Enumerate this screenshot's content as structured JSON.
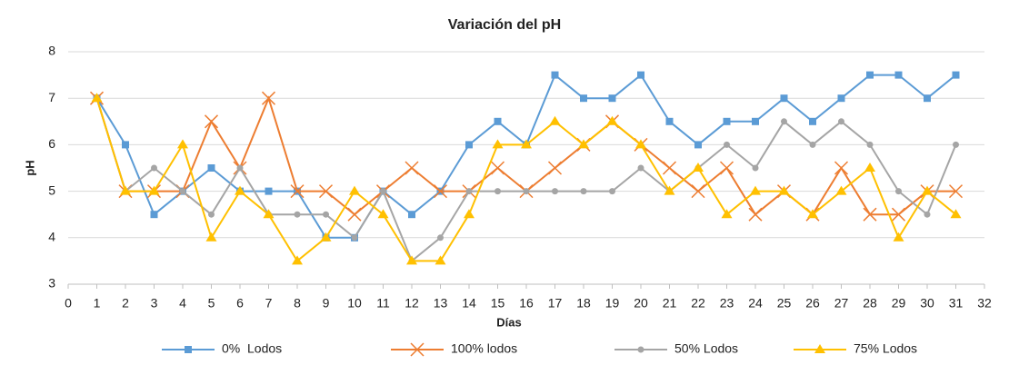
{
  "chart_data": {
    "type": "line",
    "title": "Variación del pH",
    "xlabel": "Días",
    "ylabel": "pH",
    "x": [
      1,
      2,
      3,
      4,
      5,
      6,
      7,
      8,
      9,
      10,
      11,
      12,
      13,
      14,
      15,
      16,
      17,
      18,
      19,
      20,
      21,
      22,
      23,
      24,
      25,
      26,
      27,
      28,
      29,
      30,
      31
    ],
    "series": [
      {
        "name": "0%  Lodos",
        "color": "#5b9bd5",
        "marker": "square",
        "values": [
          7,
          6,
          4.5,
          5,
          5.5,
          5,
          5,
          5,
          4,
          4,
          5,
          4.5,
          5,
          6,
          6.5,
          6,
          7.5,
          7,
          7,
          7.5,
          6.5,
          6,
          6.5,
          6.5,
          7,
          6.5,
          7,
          7.5,
          7.5,
          7,
          7.5
        ]
      },
      {
        "name": "100% lodos",
        "color": "#ed7d31",
        "marker": "x",
        "values": [
          7,
          5,
          5,
          5,
          6.5,
          5.5,
          7,
          5,
          5,
          4.5,
          5,
          5.5,
          5,
          5,
          5.5,
          5,
          5.5,
          6,
          6.5,
          6,
          5.5,
          5,
          5.5,
          4.5,
          5,
          4.5,
          5.5,
          4.5,
          4.5,
          5,
          5
        ]
      },
      {
        "name": "50% Lodos",
        "color": "#a5a5a5",
        "marker": "circle",
        "values": [
          7,
          5,
          5.5,
          5,
          4.5,
          5.5,
          4.5,
          4.5,
          4.5,
          4,
          5,
          3.5,
          4,
          5,
          5,
          5,
          5,
          5,
          5,
          5.5,
          5,
          5.5,
          6,
          5.5,
          6.5,
          6,
          6.5,
          6,
          5,
          4.5,
          6
        ]
      },
      {
        "name": "75% Lodos",
        "color": "#ffc000",
        "marker": "triangle",
        "values": [
          7,
          5,
          5,
          6,
          4,
          5,
          4.5,
          3.5,
          4,
          5,
          4.5,
          3.5,
          3.5,
          4.5,
          6,
          6,
          6.5,
          6,
          6.5,
          6,
          5,
          5.5,
          4.5,
          5,
          5,
          4.5,
          5,
          5.5,
          4,
          5,
          4.5
        ]
      }
    ],
    "xlim": [
      0,
      32
    ],
    "xticks": [
      0,
      1,
      2,
      3,
      4,
      5,
      6,
      7,
      8,
      9,
      10,
      11,
      12,
      13,
      14,
      15,
      16,
      17,
      18,
      19,
      20,
      21,
      22,
      23,
      24,
      25,
      26,
      27,
      28,
      29,
      30,
      31,
      32
    ],
    "ylim": [
      3,
      8
    ],
    "yticks": [
      3,
      4,
      5,
      6,
      7,
      8
    ],
    "grid": true,
    "legend": "bottom"
  }
}
